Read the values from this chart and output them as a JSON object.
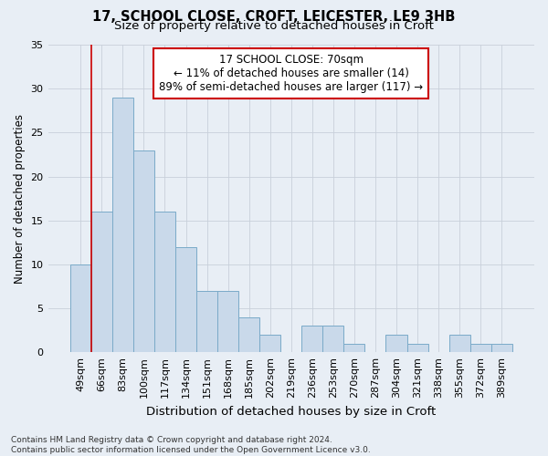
{
  "title": "17, SCHOOL CLOSE, CROFT, LEICESTER, LE9 3HB",
  "subtitle": "Size of property relative to detached houses in Croft",
  "xlabel": "Distribution of detached houses by size in Croft",
  "ylabel": "Number of detached properties",
  "categories": [
    "49sqm",
    "66sqm",
    "83sqm",
    "100sqm",
    "117sqm",
    "134sqm",
    "151sqm",
    "168sqm",
    "185sqm",
    "202sqm",
    "219sqm",
    "236sqm",
    "253sqm",
    "270sqm",
    "287sqm",
    "304sqm",
    "321sqm",
    "338sqm",
    "355sqm",
    "372sqm",
    "389sqm"
  ],
  "values": [
    10,
    16,
    29,
    23,
    16,
    12,
    7,
    7,
    4,
    2,
    0,
    3,
    3,
    1,
    0,
    2,
    1,
    0,
    2,
    1,
    1
  ],
  "bar_color": "#c9d9ea",
  "bar_edge_color": "#7aaac8",
  "grid_color": "#c8d0da",
  "background_color": "#e8eef5",
  "vline_color": "#cc0000",
  "vline_x_index": 1,
  "annotation_text_line1": "17 SCHOOL CLOSE: 70sqm",
  "annotation_text_line2": "← 11% of detached houses are smaller (14)",
  "annotation_text_line3": "89% of semi-detached houses are larger (117) →",
  "annotation_box_color": "#ffffff",
  "annotation_box_edge": "#cc0000",
  "ylim": [
    0,
    35
  ],
  "yticks": [
    0,
    5,
    10,
    15,
    20,
    25,
    30,
    35
  ],
  "footer": "Contains HM Land Registry data © Crown copyright and database right 2024.\nContains public sector information licensed under the Open Government Licence v3.0.",
  "title_fontsize": 10.5,
  "subtitle_fontsize": 9.5,
  "xlabel_fontsize": 9.5,
  "ylabel_fontsize": 8.5,
  "tick_fontsize": 8.0,
  "annotation_fontsize": 8.5,
  "footer_fontsize": 6.5
}
